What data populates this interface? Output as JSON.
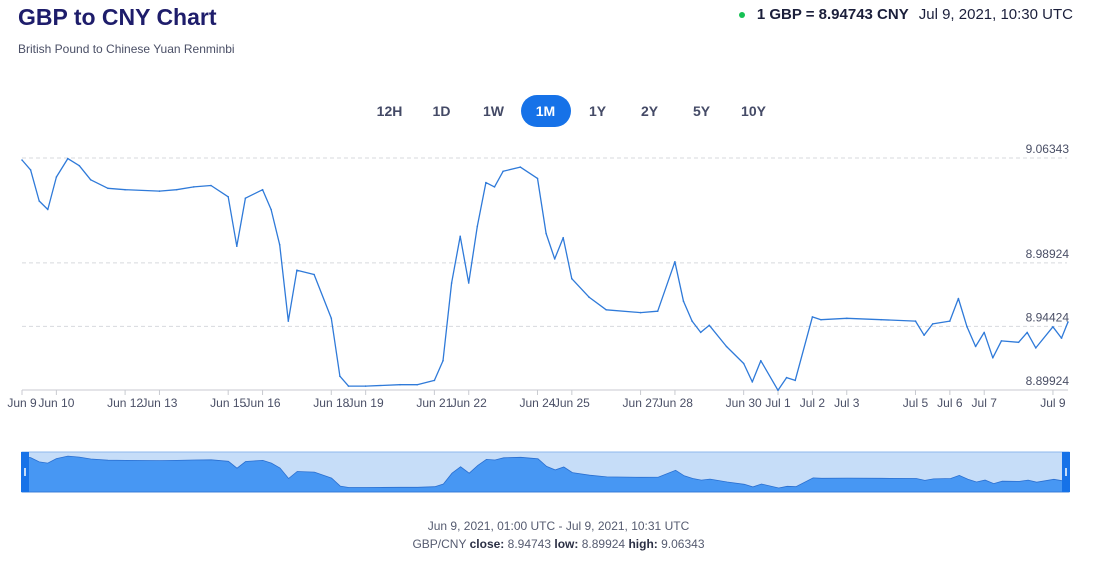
{
  "header": {
    "title": "GBP to CNY Chart",
    "subtitle": "British Pound to Chinese Yuan Renminbi",
    "rate_text": "1 GBP = 8.94743 CNY",
    "timestamp": "Jul 9, 2021, 10:30 UTC",
    "status_color": "#16c154"
  },
  "ranges": [
    {
      "label": "12H",
      "active": false
    },
    {
      "label": "1D",
      "active": false
    },
    {
      "label": "1W",
      "active": false
    },
    {
      "label": "1M",
      "active": true
    },
    {
      "label": "1Y",
      "active": false
    },
    {
      "label": "2Y",
      "active": false
    },
    {
      "label": "5Y",
      "active": false
    },
    {
      "label": "10Y",
      "active": false
    }
  ],
  "footer": {
    "range_text": "Jun 9, 2021, 01:00 UTC - Jul 9, 2021, 10:31 UTC",
    "pair": "GBP/CNY",
    "close_label": "close:",
    "close_value": "8.94743",
    "low_label": "low:",
    "low_value": "8.89924",
    "high_label": "high:",
    "high_value": "9.06343"
  },
  "colors": {
    "line": "#2f7ad9",
    "grid": "#d7d9de",
    "navigator_fill": "#4797f3",
    "navigator_bg": "#c6ddf8",
    "handle": "#1672e8"
  },
  "chart_data": {
    "type": "line",
    "series": [
      {
        "x": [
          "2021-06-09",
          "2021-06-09 06:00",
          "2021-06-09 12:00",
          "2021-06-09 18:00",
          "2021-06-10",
          "2021-06-10 08:00",
          "2021-06-10 16:00",
          "2021-06-11",
          "2021-06-11 12:00",
          "2021-06-12",
          "2021-06-13",
          "2021-06-13 12:00",
          "2021-06-14",
          "2021-06-14 12:00",
          "2021-06-15",
          "2021-06-15 06:00",
          "2021-06-15 12:00",
          "2021-06-16",
          "2021-06-16 06:00",
          "2021-06-16 12:00",
          "2021-06-16 18:00",
          "2021-06-17",
          "2021-06-17 12:00",
          "2021-06-18",
          "2021-06-18 06:00",
          "2021-06-18 12:00",
          "2021-06-19",
          "2021-06-20",
          "2021-06-20 12:00",
          "2021-06-21",
          "2021-06-21 06:00",
          "2021-06-21 12:00",
          "2021-06-21 18:00",
          "2021-06-22",
          "2021-06-22 06:00",
          "2021-06-22 12:00",
          "2021-06-22 18:00",
          "2021-06-23",
          "2021-06-23 12:00",
          "2021-06-24",
          "2021-06-24 06:00",
          "2021-06-24 12:00",
          "2021-06-24 18:00",
          "2021-06-25",
          "2021-06-25 12:00",
          "2021-06-26",
          "2021-06-27",
          "2021-06-27 12:00",
          "2021-06-28",
          "2021-06-28 06:00",
          "2021-06-28 12:00",
          "2021-06-28 18:00",
          "2021-06-29",
          "2021-06-29 12:00",
          "2021-06-30",
          "2021-06-30 06:00",
          "2021-06-30 12:00",
          "2021-07-01",
          "2021-07-01 06:00",
          "2021-07-01 12:00",
          "2021-07-02",
          "2021-07-02 06:00",
          "2021-07-03",
          "2021-07-04",
          "2021-07-05",
          "2021-07-05 06:00",
          "2021-07-05 12:00",
          "2021-07-06",
          "2021-07-06 06:00",
          "2021-07-06 12:00",
          "2021-07-06 18:00",
          "2021-07-07",
          "2021-07-07 06:00",
          "2021-07-07 12:00",
          "2021-07-08",
          "2021-07-08 06:00",
          "2021-07-08 12:00",
          "2021-07-09",
          "2021-07-09 06:00",
          "2021-07-09 10:31"
        ],
        "y": [
          9.062,
          9.055,
          9.033,
          9.027,
          9.05,
          9.063,
          9.058,
          9.048,
          9.042,
          9.041,
          9.04,
          9.041,
          9.043,
          9.044,
          9.036,
          9.001,
          9.035,
          9.041,
          9.027,
          9.002,
          8.948,
          8.984,
          8.981,
          8.95,
          8.909,
          8.902,
          8.902,
          8.903,
          8.903,
          8.906,
          8.92,
          8.975,
          9.008,
          8.975,
          9.015,
          9.046,
          9.043,
          9.054,
          9.057,
          9.049,
          9.01,
          8.992,
          9.007,
          8.978,
          8.965,
          8.956,
          8.954,
          8.955,
          8.99,
          8.962,
          8.948,
          8.94,
          8.945,
          8.93,
          8.918,
          8.905,
          8.92,
          8.899,
          8.908,
          8.906,
          8.951,
          8.949,
          8.95,
          8.949,
          8.948,
          8.938,
          8.946,
          8.948,
          8.964,
          8.944,
          8.93,
          8.94,
          8.922,
          8.934,
          8.933,
          8.94,
          8.929,
          8.944,
          8.936,
          8.9474
        ]
      }
    ],
    "y_ticks": [
      "9.06343",
      "8.98924",
      "8.94424",
      "8.89924"
    ],
    "x_ticks": [
      "Jun 9",
      "Jun 10",
      "Jun 12",
      "Jun 13",
      "Jun 15",
      "Jun 16",
      "Jun 18",
      "Jun 19",
      "Jun 21",
      "Jun 22",
      "Jun 24",
      "Jun 25",
      "Jun 27",
      "Jun 28",
      "Jun 30",
      "Jul 1",
      "Jul 2",
      "Jul 3",
      "Jul 5",
      "Jul 6",
      "Jul 7",
      "Jul 9"
    ],
    "x_range": [
      "2021-06-09",
      "2021-07-09 10:31"
    ],
    "ylim": [
      8.89924,
      9.06343
    ],
    "grid": true,
    "legend": "none"
  }
}
